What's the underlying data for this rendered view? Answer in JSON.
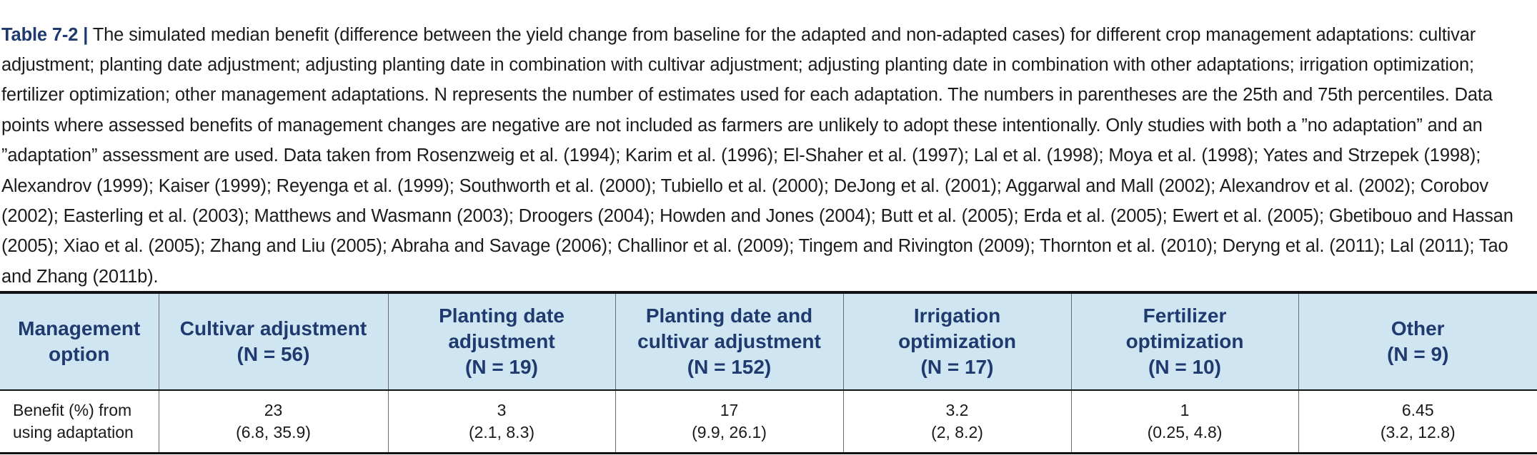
{
  "caption": {
    "label": "Table 7-2 |",
    "text": "The simulated median benefit (difference between the yield change from baseline for the adapted and non-adapted cases) for different crop management adaptations: cultivar adjustment; planting date adjustment; adjusting planting date in combination with cultivar adjustment; adjusting planting date in combination with other adaptations; irrigation optimization; fertilizer optimization; other management adaptations. N represents the number of estimates used for each adaptation. The numbers in parentheses are the 25th and 75th percentiles. Data points where assessed benefits of management changes are negative are not included as farmers are unlikely to adopt these intentionally. Only studies with both a ”no adaptation” and an ”adaptation” assessment are used. Data taken from Rosenzweig et al. (1994); Karim et al. (1996); El-Shaher et al. (1997); Lal et al. (1998); Moya et al. (1998); Yates and Strzepek (1998); Alexandrov (1999); Kaiser (1999); Reyenga et al. (1999); Southworth et al. (2000); Tubiello et al. (2000); DeJong et al. (2001); Aggarwal and Mall (2002); Alexandrov et al. (2002); Corobov (2002); Easterling et al. (2003); Matthews and Wasmann (2003); Droogers (2004); Howden and Jones (2004); Butt et al. (2005); Erda et al. (2005); Ewert et al. (2005); Gbetibouo and Hassan (2005); Xiao et al. (2005); Zhang and Liu (2005); Abraha and Savage (2006); Challinor et al. (2009); Tingem and Rivington (2009); Thornton et al. (2010); Deryng et al. (2011); Lal (2011); Tao and Zhang (2011b)."
  },
  "table": {
    "headers": [
      [
        "Management",
        "option"
      ],
      [
        "Cultivar adjustment",
        "(N = 56)"
      ],
      [
        "Planting date",
        "adjustment",
        "(N = 19)"
      ],
      [
        "Planting date and",
        "cultivar adjustment",
        "(N = 152)"
      ],
      [
        "Irrigation",
        "optimization",
        "(N = 17)"
      ],
      [
        "Fertilizer",
        "optimization",
        "(N = 10)"
      ],
      [
        "Other",
        "(N = 9)"
      ]
    ],
    "row": {
      "label": [
        "Benefit (%) from",
        "using adaptation"
      ],
      "cells": [
        [
          "23",
          "(6.8, 35.9)"
        ],
        [
          "3",
          "(2.1, 8.3)"
        ],
        [
          "17",
          "(9.9, 26.1)"
        ],
        [
          "3.2",
          "(2, 8.2)"
        ],
        [
          "1",
          "(0.25, 4.8)"
        ],
        [
          "6.45",
          "(3.2, 12.8)"
        ]
      ]
    }
  }
}
